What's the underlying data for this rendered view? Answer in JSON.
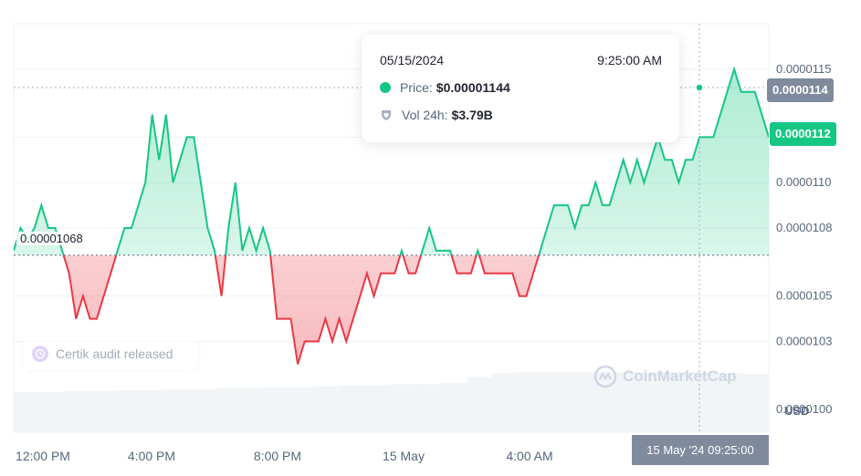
{
  "chart_data": {
    "type": "line",
    "title": "",
    "xlabel": "",
    "ylabel": "",
    "currency": "USD",
    "ylim": [
      9.9e-06,
      1.17e-05
    ],
    "y_ticks": [
      "0.0000100",
      "0.0000103",
      "0.0000105",
      "0.0000108",
      "0.0000110",
      "0.0000112",
      "0.0000115"
    ],
    "x_ticks": [
      "12:00 PM",
      "4:00 PM",
      "8:00 PM",
      "15 May",
      "4:00 AM"
    ],
    "baseline": 1.068e-05,
    "baseline_label": "0.00001068",
    "current_price_label": "0.0000112",
    "hover_price_label": "0.0000114",
    "hover_x_label": "15 May '24 09:25:00",
    "colors": {
      "up": "#16c784",
      "down": "#ea3943",
      "grid": "#eff2f5",
      "badge_dark": "#808a9d"
    },
    "series": [
      {
        "values": [
          1.07e-05,
          1.08e-05,
          1.075e-05,
          1.08e-05,
          1.09e-05,
          1.08e-05,
          1.08e-05,
          1.07e-05,
          1.06e-05,
          1.04e-05,
          1.05e-05,
          1.04e-05,
          1.04e-05,
          1.05e-05,
          1.06e-05,
          1.07e-05,
          1.08e-05,
          1.08e-05,
          1.09e-05,
          1.1e-05,
          1.13e-05,
          1.11e-05,
          1.13e-05,
          1.1e-05,
          1.11e-05,
          1.12e-05,
          1.12e-05,
          1.1e-05,
          1.08e-05,
          1.07e-05,
          1.05e-05,
          1.08e-05,
          1.1e-05,
          1.07e-05,
          1.08e-05,
          1.07e-05,
          1.08e-05,
          1.07e-05,
          1.04e-05,
          1.04e-05,
          1.04e-05,
          1.02e-05,
          1.03e-05,
          1.03e-05,
          1.03e-05,
          1.04e-05,
          1.03e-05,
          1.04e-05,
          1.03e-05,
          1.04e-05,
          1.05e-05,
          1.06e-05,
          1.05e-05,
          1.06e-05,
          1.06e-05,
          1.06e-05,
          1.07e-05,
          1.06e-05,
          1.06e-05,
          1.07e-05,
          1.08e-05,
          1.07e-05,
          1.07e-05,
          1.07e-05,
          1.06e-05,
          1.06e-05,
          1.06e-05,
          1.07e-05,
          1.06e-05,
          1.06e-05,
          1.06e-05,
          1.06e-05,
          1.06e-05,
          1.05e-05,
          1.05e-05,
          1.06e-05,
          1.07e-05,
          1.08e-05,
          1.09e-05,
          1.09e-05,
          1.09e-05,
          1.08e-05,
          1.09e-05,
          1.09e-05,
          1.1e-05,
          1.09e-05,
          1.09e-05,
          1.1e-05,
          1.11e-05,
          1.1e-05,
          1.11e-05,
          1.1e-05,
          1.11e-05,
          1.12e-05,
          1.11e-05,
          1.11e-05,
          1.1e-05,
          1.11e-05,
          1.11e-05,
          1.12e-05,
          1.12e-05,
          1.12e-05,
          1.13e-05,
          1.14e-05,
          1.15e-05,
          1.14e-05,
          1.14e-05,
          1.14e-05,
          1.13e-05,
          1.12e-05
        ]
      }
    ],
    "volume_series": [
      0.4,
      0.4,
      0.41,
      0.41,
      0.42,
      0.42,
      0.43,
      0.43,
      0.44,
      0.44,
      0.45,
      0.45,
      0.46,
      0.47,
      0.47,
      0.48,
      0.48,
      0.49,
      0.55,
      0.59,
      0.6,
      0.6,
      0.6,
      0.6,
      0.6,
      0.6,
      0.6,
      0.6,
      0.59,
      0.58
    ]
  },
  "tooltip": {
    "date": "05/15/2024",
    "time": "9:25:00 AM",
    "price_label": "Price:",
    "price_value": "$0.00001144",
    "vol_label": "Vol 24h:",
    "vol_value": "$3.79B"
  },
  "certik": {
    "text": "Certik audit released",
    "icon": "certik-clock-icon"
  },
  "watermark": {
    "text": "CoinMarketCap",
    "icon": "coinmarketcap-logo-icon"
  },
  "currency_label": "USD"
}
